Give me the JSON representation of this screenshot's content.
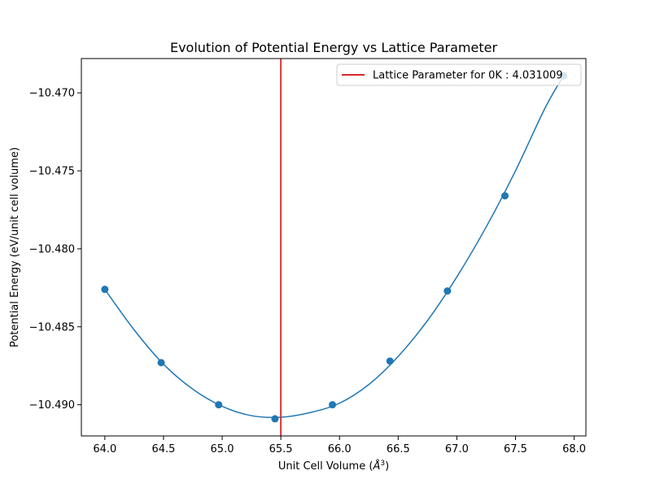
{
  "chart_data": {
    "type": "line",
    "title": "Evolution of Potential Energy vs Lattice Parameter",
    "xlabel": "Unit Cell Volume (",
    "xlabel_symbol": "Å",
    "xlabel_exponent": "3",
    "xlabel_close": ")",
    "ylabel": "Potential Energy (eV/unit cell volume)",
    "xlim": [
      63.8,
      68.1
    ],
    "ylim": [
      -10.492,
      -10.4678
    ],
    "x_ticks": [
      64.0,
      64.5,
      65.0,
      65.5,
      66.0,
      66.5,
      67.0,
      67.5,
      68.0
    ],
    "x_tick_labels": [
      "64.0",
      "64.5",
      "65.0",
      "65.5",
      "66.0",
      "66.5",
      "67.0",
      "67.5",
      "68.0"
    ],
    "y_ticks": [
      -10.47,
      -10.475,
      -10.48,
      -10.485,
      -10.49
    ],
    "y_tick_labels": [
      "−10.470",
      "−10.475",
      "−10.480",
      "−10.485",
      "−10.490"
    ],
    "grid": false,
    "legend_position": "top-right",
    "points": {
      "x": [
        64.0,
        64.48,
        64.97,
        65.45,
        65.94,
        66.43,
        66.92,
        67.41,
        67.91
      ],
      "y": [
        -10.4826,
        -10.4873,
        -10.49,
        -10.4909,
        -10.49,
        -10.4872,
        -10.4827,
        -10.4766,
        -10.4689
      ]
    },
    "fit_curve": {
      "x": [
        64.0,
        64.25,
        64.5,
        64.75,
        65.0,
        65.25,
        65.5,
        65.75,
        66.0,
        66.25,
        66.5,
        66.75,
        67.0,
        67.25,
        67.5,
        67.75,
        67.91
      ],
      "y": [
        -10.4826,
        -10.4852,
        -10.4874,
        -10.489,
        -10.4901,
        -10.4907,
        -10.4908,
        -10.4905,
        -10.4899,
        -10.4887,
        -10.4869,
        -10.4846,
        -10.4818,
        -10.4786,
        -10.475,
        -10.471,
        -10.4689
      ]
    },
    "vline": {
      "x": 65.5,
      "label": "Lattice Parameter for 0K : 4.031009",
      "color": "#d62728"
    },
    "colors": {
      "series": "#1f77b4",
      "vline": "#d62728"
    }
  }
}
